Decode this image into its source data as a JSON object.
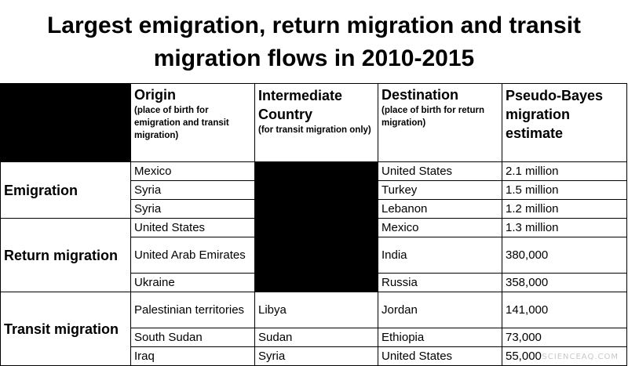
{
  "title": "Largest emigration, return migration and transit migration flows in 2010-2015",
  "headers": {
    "origin": "Origin",
    "origin_note": "(place of birth for emigration and transit migration)",
    "intermediate": "Intermediate Country",
    "intermediate_note": "(for transit migration only)",
    "destination": "Destination",
    "destination_note": "(place of birth for return migration)",
    "estimate": "Pseudo-Bayes migration estimate"
  },
  "groups": {
    "emigration": "Emigration",
    "return": "Return migration",
    "transit": "Transit migration"
  },
  "rows": [
    {
      "origin": "Mexico",
      "intermediate": "",
      "destination": "United States",
      "estimate": "2.1 million"
    },
    {
      "origin": "Syria",
      "intermediate": "",
      "destination": "Turkey",
      "estimate": "1.5 million"
    },
    {
      "origin": "Syria",
      "intermediate": "",
      "destination": "Lebanon",
      "estimate": "1.2 million"
    },
    {
      "origin": "United States",
      "intermediate": "",
      "destination": "Mexico",
      "estimate": "1.3 million"
    },
    {
      "origin": "United Arab Emirates",
      "intermediate": "",
      "destination": "India",
      "estimate": "380,000"
    },
    {
      "origin": "Ukraine",
      "intermediate": "",
      "destination": "Russia",
      "estimate": "358,000"
    },
    {
      "origin": "Palestinian territories",
      "intermediate": "Libya",
      "destination": "Jordan",
      "estimate": "141,000"
    },
    {
      "origin": "South Sudan",
      "intermediate": "Sudan",
      "destination": "Ethiopia",
      "estimate": "73,000"
    },
    {
      "origin": "Iraq",
      "intermediate": "Syria",
      "destination": "United States",
      "estimate": "55,000"
    }
  ],
  "watermark": "SCIENCEAQ.COM"
}
